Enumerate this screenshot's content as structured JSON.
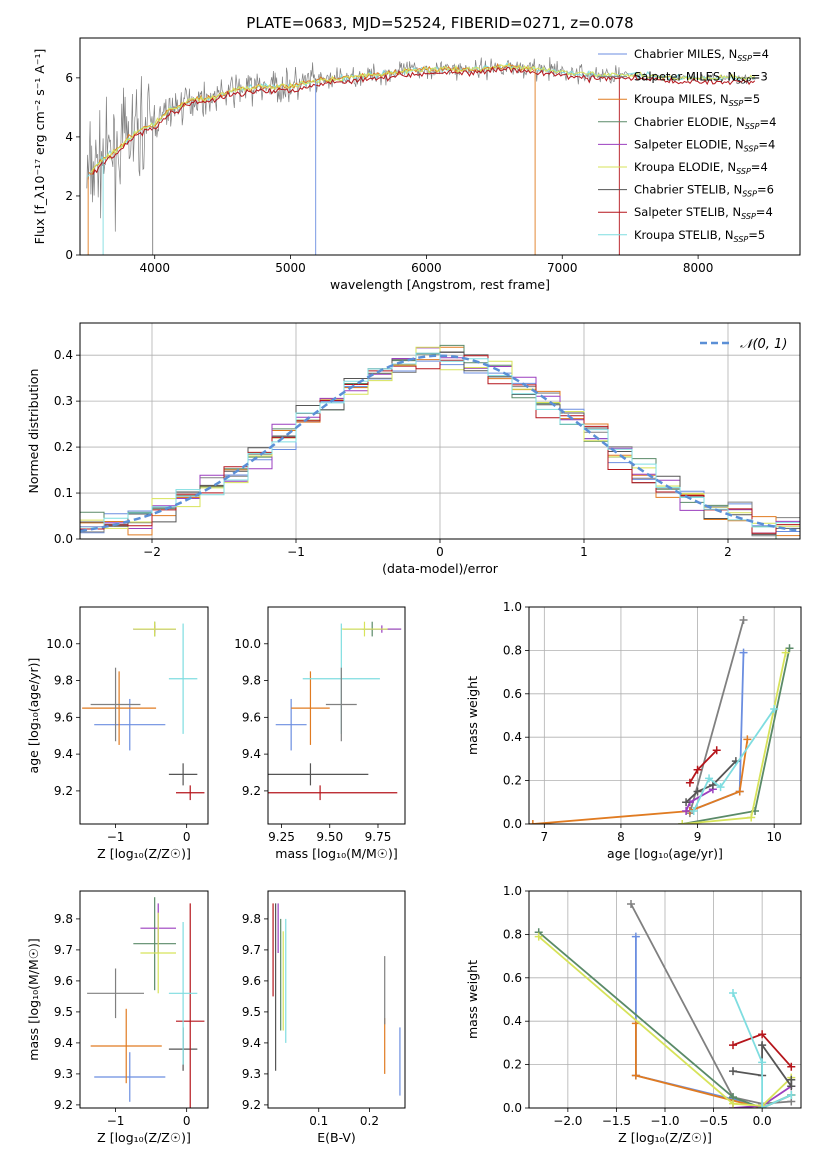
{
  "figure": {
    "title": "PLATE=0683, MJD=52524, FIBERID=0271, z=0.078"
  },
  "models": [
    {
      "name": "Chabrier MILES",
      "nssp": "4",
      "color": "#6b8ee0"
    },
    {
      "name": "Salpeter MILES",
      "nssp": "3",
      "color": "#808080"
    },
    {
      "name": "Kroupa MILES",
      "nssp": "5",
      "color": "#e07b21"
    },
    {
      "name": "Chabrier ELODIE",
      "nssp": "4",
      "color": "#5a8a68"
    },
    {
      "name": "Salpeter ELODIE",
      "nssp": "4",
      "color": "#9b3fbf"
    },
    {
      "name": "Kroupa ELODIE",
      "nssp": "4",
      "color": "#d7e35a"
    },
    {
      "name": "Chabrier STELIB",
      "nssp": "6",
      "color": "#555555"
    },
    {
      "name": "Salpeter STELIB",
      "nssp": "4",
      "color": "#b5151b"
    },
    {
      "name": "Kroupa STELIB",
      "nssp": "5",
      "color": "#7fdde0"
    }
  ],
  "chart_data": [
    {
      "type": "line",
      "id": "spectrum",
      "xlabel": "wavelength [Angstrom, rest frame]",
      "ylabel": "Flux [f_λ10⁻¹⁷ erg cm⁻² s⁻¹ A⁻¹]",
      "xlim": [
        3450,
        8750
      ],
      "ylim": [
        0,
        7.35
      ],
      "xticks": [
        4000,
        5000,
        6000,
        7000,
        8000
      ],
      "yticks": [
        0,
        2,
        4,
        6
      ],
      "legend_position": "right",
      "data_color": "#808080",
      "envelope": {
        "x": [
          3500,
          3600,
          3700,
          3800,
          3900,
          4000,
          4100,
          4200,
          4300,
          4400,
          4600,
          4800,
          5000,
          5200,
          5400,
          5600,
          5800,
          6000,
          6200,
          6400,
          6600,
          6800,
          7000,
          7200,
          7400,
          7600,
          7800,
          8000,
          8200,
          8400
        ],
        "y": [
          2.6,
          3.2,
          3.5,
          3.9,
          4.3,
          4.4,
          4.9,
          5.1,
          5.3,
          5.3,
          5.6,
          5.7,
          5.7,
          5.9,
          6.0,
          6.1,
          6.2,
          6.3,
          6.3,
          6.3,
          6.4,
          6.3,
          6.2,
          6.1,
          6.1,
          6.1,
          6.0,
          6.0,
          6.0,
          6.0
        ]
      }
    },
    {
      "type": "line",
      "id": "residuals",
      "xlabel": "(data-model)/error",
      "ylabel": "Normed distribution",
      "xlim": [
        -2.5,
        2.5
      ],
      "ylim": [
        0,
        0.47
      ],
      "xticks": [
        -2,
        -1,
        0,
        1,
        2
      ],
      "yticks": [
        0.0,
        0.1,
        0.2,
        0.3,
        0.4
      ],
      "grid": true,
      "legend_position": "top-right",
      "gaussian_label": "𝒩(0, 1)",
      "gaussian_color": "#5b8fd6",
      "bins": 30
    },
    {
      "type": "scatter",
      "id": "age_vs_Z",
      "xlabel": "Z [log₁₀(Z/Z☉)]",
      "ylabel": "age  [log₁₀(age/yr)]",
      "xlim": [
        -1.5,
        0.3
      ],
      "ylim": [
        9.02,
        10.2
      ],
      "xticks": [
        -1,
        0
      ],
      "yticks": [
        9.2,
        9.4,
        9.6,
        9.8,
        10.0
      ],
      "points": [
        {
          "model": 0,
          "x": -0.8,
          "y": 9.56,
          "xerr": 0.5,
          "yerr": 0.14
        },
        {
          "model": 2,
          "x": -0.95,
          "y": 9.65,
          "xerr": 0.52,
          "yerr": 0.2
        },
        {
          "model": 3,
          "x": -0.45,
          "y": 10.08,
          "xerr": 0.3,
          "yerr": 0.04
        },
        {
          "model": 4,
          "x": -0.45,
          "y": 10.08,
          "xerr": 0.3,
          "yerr": 0.02
        },
        {
          "model": 5,
          "x": -0.45,
          "y": 10.08,
          "xerr": 0.3,
          "yerr": 0.04
        },
        {
          "model": 6,
          "x": -0.05,
          "y": 9.29,
          "xerr": 0.2,
          "yerr": 0.06
        },
        {
          "model": 7,
          "x": 0.05,
          "y": 9.19,
          "xerr": 0.2,
          "yerr": 0.04
        },
        {
          "model": 8,
          "x": -0.05,
          "y": 9.81,
          "xerr": 0.2,
          "yerr": 0.3
        },
        {
          "model": 1,
          "x": -1.0,
          "y": 9.67,
          "xerr": 0.35,
          "yerr": 0.2
        }
      ]
    },
    {
      "type": "scatter",
      "id": "age_vs_mass",
      "xlabel": "mass [log₁₀(M/M☉)]",
      "ylabel": "",
      "xlim": [
        9.18,
        9.89
      ],
      "ylim": [
        9.02,
        10.2
      ],
      "xticks": [
        9.25,
        9.5,
        9.75
      ],
      "yticks": [
        9.2,
        9.4,
        9.6,
        9.8,
        10.0
      ],
      "points": [
        {
          "model": 0,
          "x": 9.3,
          "y": 9.56,
          "xerr": 0.08,
          "yerr": 0.14
        },
        {
          "model": 2,
          "x": 9.4,
          "y": 9.65,
          "xerr": 0.1,
          "yerr": 0.2
        },
        {
          "model": 3,
          "x": 9.72,
          "y": 10.08,
          "xerr": 0.15,
          "yerr": 0.04
        },
        {
          "model": 4,
          "x": 9.77,
          "y": 10.08,
          "xerr": 0.1,
          "yerr": 0.02
        },
        {
          "model": 5,
          "x": 9.68,
          "y": 10.08,
          "xerr": 0.12,
          "yerr": 0.04
        },
        {
          "model": 6,
          "x": 9.4,
          "y": 9.29,
          "xerr": 0.3,
          "yerr": 0.06
        },
        {
          "model": 7,
          "x": 9.45,
          "y": 9.19,
          "xerr": 0.4,
          "yerr": 0.04
        },
        {
          "model": 8,
          "x": 9.56,
          "y": 9.81,
          "xerr": 0.2,
          "yerr": 0.3
        },
        {
          "model": 1,
          "x": 9.56,
          "y": 9.67,
          "xerr": 0.08,
          "yerr": 0.2
        }
      ]
    },
    {
      "type": "line",
      "id": "weight_vs_age",
      "xlabel": "age  [log₁₀(age/yr)]",
      "ylabel": "mass weight",
      "xlim": [
        6.8,
        10.35
      ],
      "ylim": [
        0,
        1.0
      ],
      "xticks": [
        7,
        8,
        9,
        10
      ],
      "yticks": [
        0.0,
        0.2,
        0.4,
        0.6,
        0.8,
        1.0
      ],
      "grid": true,
      "series": [
        {
          "model": 0,
          "x": [
            8.9,
            9.55,
            9.6
          ],
          "y": [
            0.06,
            0.15,
            0.79
          ]
        },
        {
          "model": 1,
          "x": [
            8.9,
            9.6
          ],
          "y": [
            0.05,
            0.94
          ]
        },
        {
          "model": 2,
          "x": [
            6.85,
            8.9,
            9.55,
            9.65
          ],
          "y": [
            0.0,
            0.06,
            0.15,
            0.39
          ]
        },
        {
          "model": 3,
          "x": [
            8.8,
            9.75,
            10.2
          ],
          "y": [
            0.0,
            0.06,
            0.81
          ]
        },
        {
          "model": 4,
          "x": [
            8.85,
            8.9,
            9.2
          ],
          "y": [
            0.06,
            0.1,
            0.16
          ]
        },
        {
          "model": 5,
          "x": [
            8.8,
            9.7,
            10.15
          ],
          "y": [
            0.0,
            0.03,
            0.79
          ]
        },
        {
          "model": 6,
          "x": [
            8.85,
            9.0,
            9.2,
            9.5
          ],
          "y": [
            0.1,
            0.15,
            0.18,
            0.29
          ]
        },
        {
          "model": 7,
          "x": [
            8.9,
            9.0,
            9.25
          ],
          "y": [
            0.19,
            0.25,
            0.34
          ]
        },
        {
          "model": 8,
          "x": [
            8.95,
            9.15,
            9.3,
            10.0
          ],
          "y": [
            0.06,
            0.21,
            0.17,
            0.53
          ]
        }
      ]
    },
    {
      "type": "scatter",
      "id": "mass_vs_Z",
      "xlabel": "Z [log₁₀(Z/Z☉)]",
      "ylabel": "mass [log₁₀(M/M☉)]",
      "xlim": [
        -1.5,
        0.3
      ],
      "ylim": [
        9.19,
        9.89
      ],
      "xticks": [
        -1,
        0
      ],
      "yticks": [
        9.2,
        9.3,
        9.4,
        9.5,
        9.6,
        9.7,
        9.8
      ],
      "points": [
        {
          "model": 0,
          "x": -0.8,
          "y": 9.29,
          "xerr": 0.5,
          "yerr": 0.08
        },
        {
          "model": 2,
          "x": -0.85,
          "y": 9.39,
          "xerr": 0.5,
          "yerr": 0.12
        },
        {
          "model": 3,
          "x": -0.45,
          "y": 9.72,
          "xerr": 0.3,
          "yerr": 0.15
        },
        {
          "model": 4,
          "x": -0.4,
          "y": 9.77,
          "xerr": 0.25,
          "yerr": 0.08
        },
        {
          "model": 5,
          "x": -0.4,
          "y": 9.69,
          "xerr": 0.25,
          "yerr": 0.13
        },
        {
          "model": 6,
          "x": -0.05,
          "y": 9.38,
          "xerr": 0.2,
          "yerr": 0.07
        },
        {
          "model": 7,
          "x": 0.05,
          "y": 9.47,
          "xerr": 0.2,
          "yerr": 0.38
        },
        {
          "model": 8,
          "x": -0.05,
          "y": 9.56,
          "xerr": 0.2,
          "yerr": 0.23
        },
        {
          "model": 1,
          "x": -1.0,
          "y": 9.56,
          "xerr": 0.4,
          "yerr": 0.08
        }
      ]
    },
    {
      "type": "scatter",
      "id": "mass_vs_EBV",
      "xlabel": "E(B-V)",
      "ylabel": "",
      "xlim": [
        0.0,
        0.27
      ],
      "ylim": [
        9.19,
        9.89
      ],
      "xticks": [
        0.1,
        0.2
      ],
      "yticks": [
        9.2,
        9.3,
        9.4,
        9.5,
        9.6,
        9.7,
        9.8
      ],
      "points": [
        {
          "model": 0,
          "x": 0.26,
          "y": 9.34,
          "xerr": 0,
          "yerr": 0.11
        },
        {
          "model": 2,
          "x": 0.23,
          "y": 9.39,
          "xerr": 0,
          "yerr": 0.09
        },
        {
          "model": 1,
          "x": 0.23,
          "y": 9.57,
          "xerr": 0,
          "yerr": 0.11
        },
        {
          "model": 3,
          "x": 0.025,
          "y": 9.62,
          "xerr": 0,
          "yerr": 0.18
        },
        {
          "model": 4,
          "x": 0.02,
          "y": 9.77,
          "xerr": 0,
          "yerr": 0.08
        },
        {
          "model": 5,
          "x": 0.03,
          "y": 9.6,
          "xerr": 0,
          "yerr": 0.16
        },
        {
          "model": 6,
          "x": 0.015,
          "y": 9.58,
          "xerr": 0,
          "yerr": 0.27
        },
        {
          "model": 7,
          "x": 0.01,
          "y": 9.7,
          "xerr": 0,
          "yerr": 0.15
        },
        {
          "model": 8,
          "x": 0.035,
          "y": 9.6,
          "xerr": 0,
          "yerr": 0.2
        }
      ]
    },
    {
      "type": "line",
      "id": "weight_vs_Z",
      "xlabel": "Z [log₁₀(Z/Z☉)]",
      "ylabel": "mass weight",
      "xlim": [
        -2.4,
        0.4
      ],
      "ylim": [
        0,
        1.0
      ],
      "xticks": [
        -2.0,
        -1.5,
        -1.0,
        -0.5,
        0.0
      ],
      "yticks": [
        0.0,
        0.2,
        0.4,
        0.6,
        0.8,
        1.0
      ],
      "grid": true,
      "series": [
        {
          "model": 0,
          "x": [
            -1.3,
            -1.3,
            -0.3,
            0.0
          ],
          "y": [
            0.79,
            0.15,
            0.04,
            0.0
          ]
        },
        {
          "model": 1,
          "x": [
            -1.35,
            -0.3,
            0.0,
            0.3
          ],
          "y": [
            0.94,
            0.05,
            0.02,
            0.03
          ]
        },
        {
          "model": 2,
          "x": [
            -1.3,
            -1.3,
            0.0,
            0.3
          ],
          "y": [
            0.39,
            0.15,
            0.0,
            0.06
          ]
        },
        {
          "model": 3,
          "x": [
            -2.3,
            -0.3,
            0.0,
            0.3
          ],
          "y": [
            0.81,
            0.05,
            0.0,
            0.06
          ]
        },
        {
          "model": 4,
          "x": [
            -0.3,
            0.0,
            0.3
          ],
          "y": [
            0.0,
            0.01,
            0.1
          ]
        },
        {
          "model": 5,
          "x": [
            -2.3,
            -0.3,
            0.0,
            0.3
          ],
          "y": [
            0.79,
            0.02,
            0.01,
            0.14
          ]
        },
        {
          "model": 6,
          "x": [
            -0.3,
            0.0,
            0.0,
            0.3,
            0.3
          ],
          "y": [
            0.17,
            0.15,
            0.29,
            0.1,
            0.13
          ]
        },
        {
          "model": 7,
          "x": [
            -0.3,
            0.0,
            0.3
          ],
          "y": [
            0.29,
            0.34,
            0.19
          ]
        },
        {
          "model": 8,
          "x": [
            -0.3,
            0.0,
            0.0,
            0.3
          ],
          "y": [
            0.53,
            0.21,
            0.0,
            0.06
          ]
        }
      ]
    }
  ]
}
